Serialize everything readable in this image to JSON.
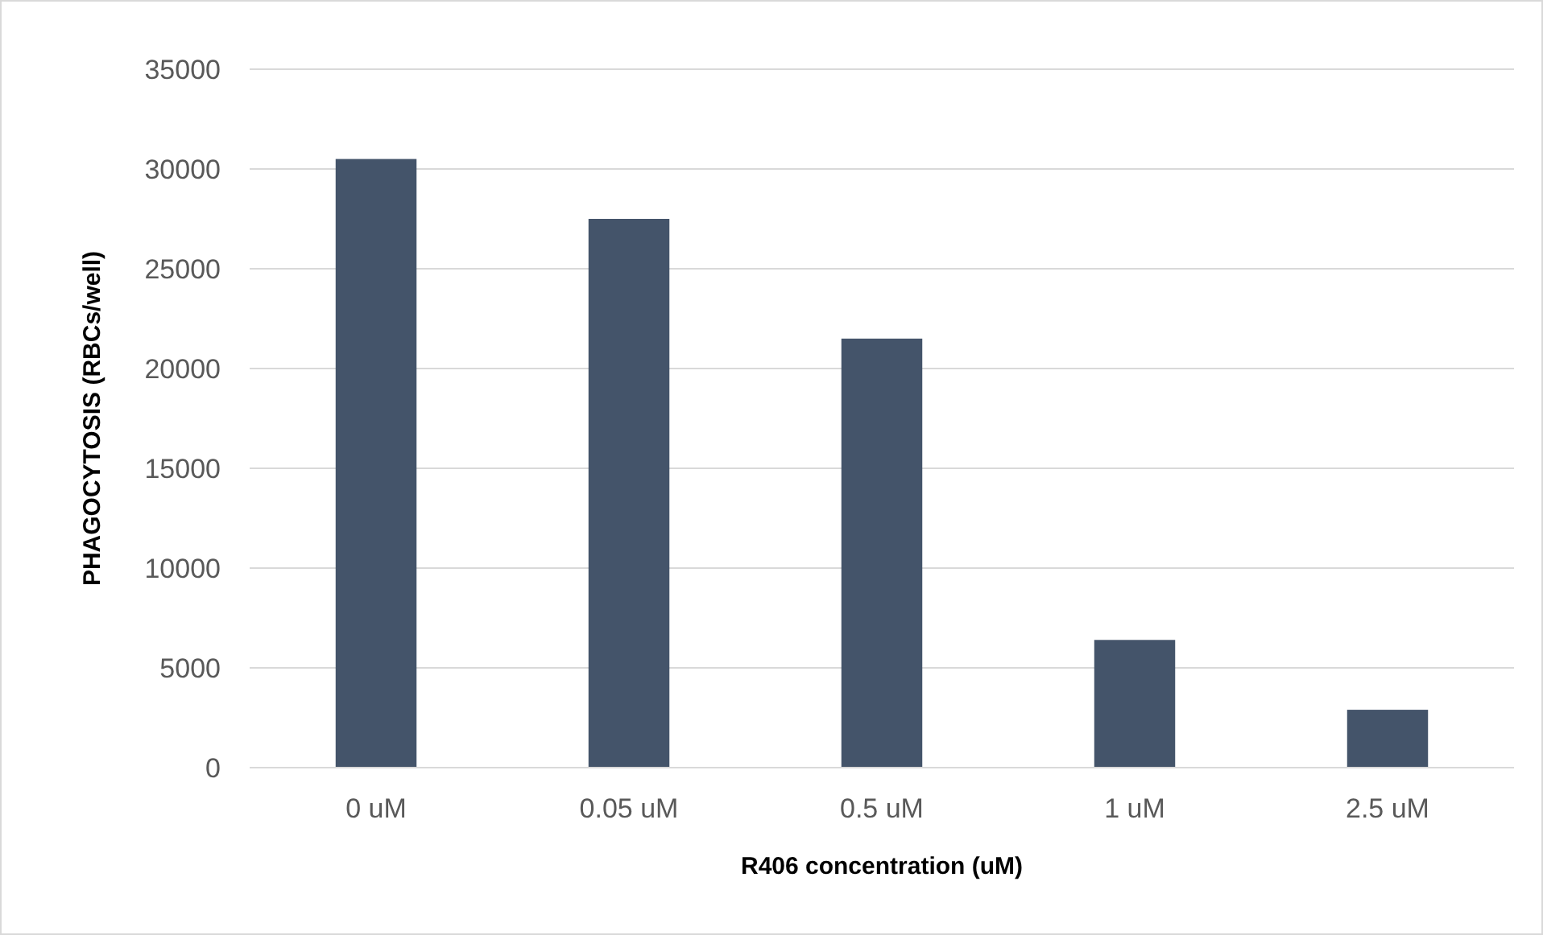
{
  "chart_data": {
    "type": "bar",
    "xlabel": "R406 concentration (uM)",
    "ylabel": "PHAGOCYTOSIS (RBCs/well)",
    "categories": [
      "0 uM",
      "0.05 uM",
      "0.5 uM",
      "1 uM",
      "2.5 uM"
    ],
    "values": [
      30500,
      27500,
      21500,
      6400,
      2900
    ],
    "color": "#44546a",
    "ylim": [
      0,
      35000
    ],
    "yticks": [
      0,
      5000,
      10000,
      15000,
      20000,
      25000,
      30000,
      35000
    ],
    "grid": "y"
  }
}
